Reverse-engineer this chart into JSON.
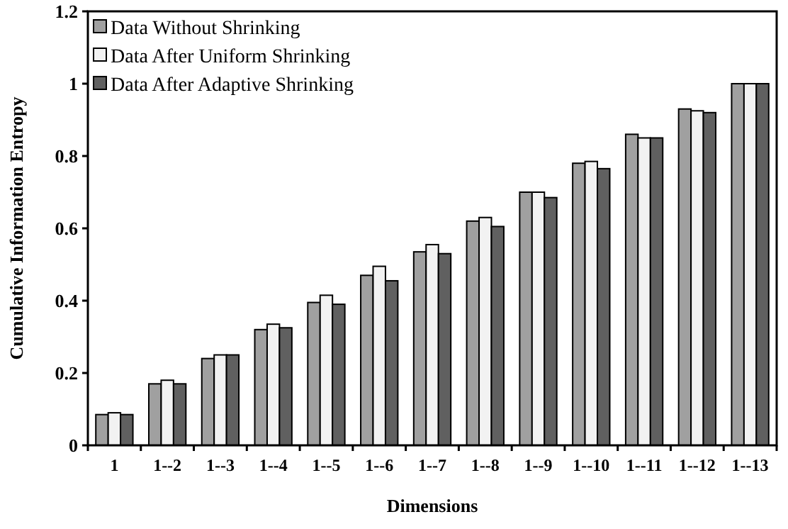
{
  "chart_data": {
    "type": "bar",
    "xlabel": "Dimensions",
    "ylabel": "Cumulative Information Entropy",
    "categories": [
      "1",
      "1--2",
      "1--3",
      "1--4",
      "1--5",
      "1--6",
      "1--7",
      "1--8",
      "1--9",
      "1--10",
      "1--11",
      "1--12",
      "1--13"
    ],
    "series": [
      {
        "name": "Data Without Shrinking",
        "color": "#a0a0a0",
        "values": [
          0.085,
          0.17,
          0.24,
          0.32,
          0.395,
          0.47,
          0.535,
          0.62,
          0.7,
          0.78,
          0.86,
          0.93,
          1.0
        ]
      },
      {
        "name": "Data After Uniform Shrinking",
        "color": "#f2f2f2",
        "values": [
          0.09,
          0.18,
          0.25,
          0.335,
          0.415,
          0.495,
          0.555,
          0.63,
          0.7,
          0.785,
          0.85,
          0.925,
          1.0
        ]
      },
      {
        "name": "Data After Adaptive Shrinking",
        "color": "#606060",
        "values": [
          0.085,
          0.17,
          0.25,
          0.325,
          0.39,
          0.455,
          0.53,
          0.605,
          0.685,
          0.765,
          0.85,
          0.92,
          1.0
        ]
      }
    ],
    "ylim": [
      0,
      1.2
    ],
    "yticks": [
      0,
      0.2,
      0.4,
      0.6,
      0.8,
      1,
      1.2
    ],
    "grid": false,
    "legend": "top left"
  }
}
